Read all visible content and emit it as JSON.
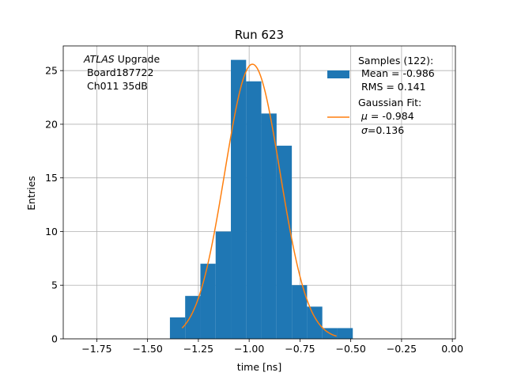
{
  "chart_data": {
    "type": "bar",
    "title": "Run 623",
    "xlabel": "time [ns]",
    "ylabel": "Entries",
    "xlim": [
      -1.915,
      0.015
    ],
    "ylim": [
      0,
      27.3
    ],
    "grid": true,
    "xticks": [
      -1.75,
      -1.5,
      -1.25,
      -1.0,
      -0.75,
      -0.5,
      -0.25,
      0.0
    ],
    "xtick_labels": [
      "−1.75",
      "−1.50",
      "−1.25",
      "−1.00",
      "−0.75",
      "−0.50",
      "−0.25",
      "0.00"
    ],
    "yticks": [
      0,
      5,
      10,
      15,
      20,
      25
    ],
    "ytick_labels": [
      "0",
      "5",
      "10",
      "15",
      "20",
      "25"
    ],
    "bin_edges": [
      -1.39,
      -1.315,
      -1.24,
      -1.165,
      -1.09,
      -1.015,
      -0.94,
      -0.865,
      -0.79,
      -0.715,
      -0.64,
      -0.565,
      -0.49
    ],
    "values": [
      2,
      4,
      7,
      10,
      26,
      24,
      21,
      18,
      5,
      3,
      1,
      1
    ],
    "fit": {
      "mu": -0.984,
      "sigma": 0.136,
      "peak": 25.6,
      "x_range": [
        -1.33,
        -0.57
      ]
    },
    "colors": {
      "bars": "#1f77b4",
      "fit": "#ff7f0e"
    },
    "legend": {
      "position": "top-right",
      "hist_lines": [
        "Samples (122):",
        " Mean = -0.986",
        " RMS = 0.141"
      ],
      "fit_title": "Gaussian Fit:",
      "fit_mu_symbol": "μ",
      "fit_mu_value": " = -0.984",
      "fit_sigma_symbol": "σ",
      "fit_sigma_value": "=0.136"
    },
    "annotation": {
      "atlas_label": "ATLAS",
      "atlas_suffix": " Upgrade",
      "board": " Board187722",
      "channel": " Ch011 35dB"
    }
  }
}
